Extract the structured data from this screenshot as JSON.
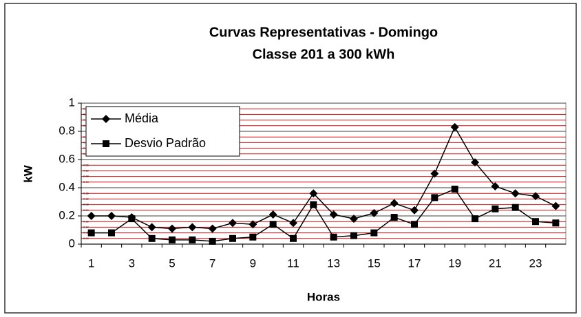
{
  "chart_data": {
    "type": "line",
    "title": "Curvas Representativas - Domingo",
    "subtitle": "Classe 201 a 300 kWh",
    "x_label": "Horas",
    "y_label": "kW",
    "categories": [
      "1",
      null,
      "3",
      null,
      "5",
      null,
      "7",
      null,
      "9",
      null,
      "11",
      null,
      "13",
      null,
      "15",
      null,
      "17",
      null,
      "19",
      null,
      "21",
      null,
      "23",
      null
    ],
    "series": [
      {
        "name": "Média",
        "color": "#000000",
        "marker": "diamond",
        "values": [
          0.2,
          0.2,
          0.19,
          0.12,
          0.11,
          0.12,
          0.11,
          0.15,
          0.14,
          0.21,
          0.15,
          0.36,
          0.21,
          0.18,
          0.22,
          0.29,
          0.24,
          0.5,
          0.83,
          0.58,
          0.41,
          0.36,
          0.34,
          0.27
        ]
      },
      {
        "name": "Desvio Padrão",
        "color": "#000000",
        "marker": "square",
        "values": [
          0.08,
          0.08,
          0.18,
          0.04,
          0.03,
          0.03,
          0.02,
          0.04,
          0.05,
          0.14,
          0.04,
          0.28,
          0.05,
          0.06,
          0.08,
          0.19,
          0.14,
          0.33,
          0.39,
          0.18,
          0.25,
          0.26,
          0.16,
          0.15
        ]
      }
    ],
    "ylim": [
      0,
      1
    ],
    "yticks": [
      0,
      0.2,
      0.4,
      0.6,
      0.8,
      1
    ],
    "minor_yticks": [
      0.04,
      0.08,
      0.12,
      0.16,
      0.24,
      0.28,
      0.32,
      0.36,
      0.44,
      0.48,
      0.52,
      0.56,
      0.64,
      0.68,
      0.72,
      0.76,
      0.84,
      0.88,
      0.92,
      0.96
    ],
    "grid": true,
    "minor_grid_color": "#d01010",
    "legend": "upper left"
  }
}
